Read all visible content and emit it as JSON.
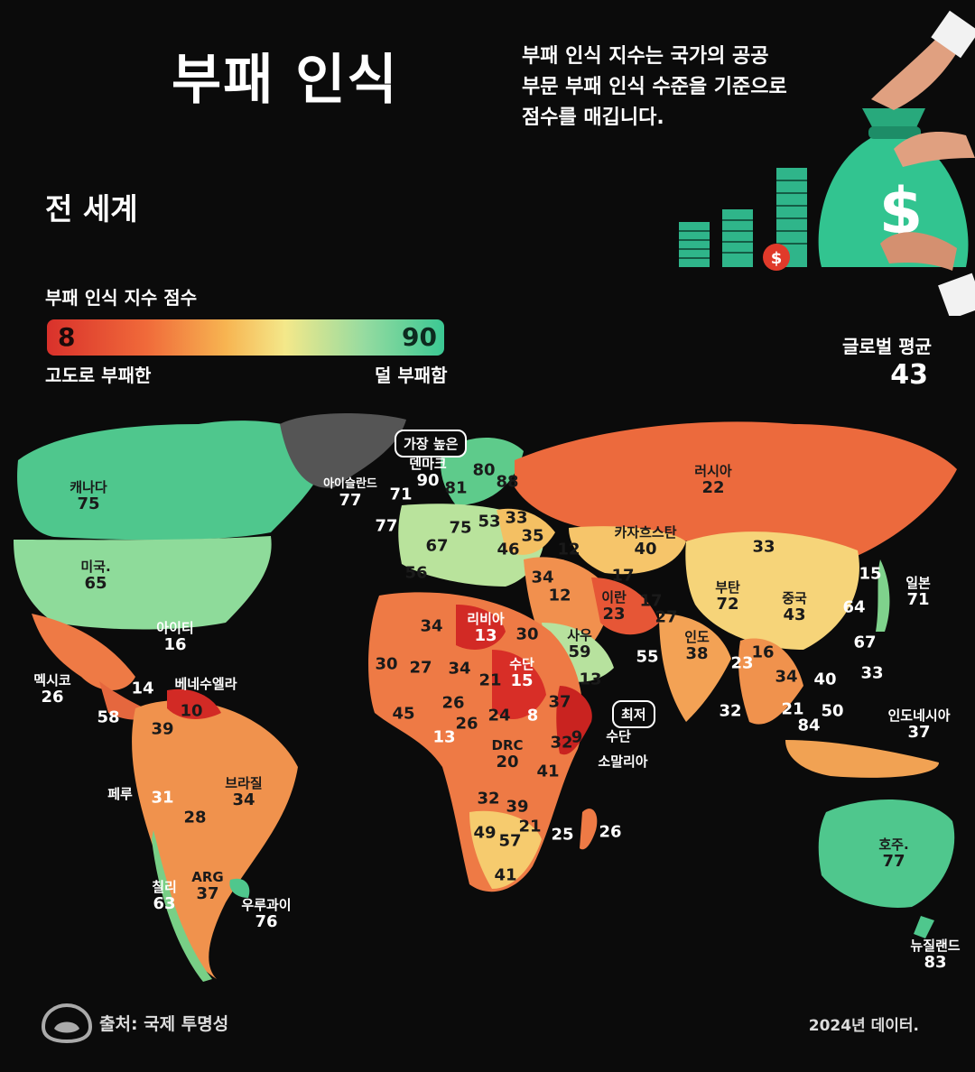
{
  "title": "부패 인식",
  "description": [
    "부패 인식 지수는 국가의 공공",
    "부문 부패 인식 수준을 기준으로",
    "점수를 매깁니다."
  ],
  "subtitle": "전 세계",
  "legend": {
    "title": "부패 인식 지수 점수",
    "min": "8",
    "max": "90",
    "low_label": "고도로 부패한",
    "high_label": "덜 부패함"
  },
  "global_average": {
    "label": "글로벌 평균",
    "value": "43"
  },
  "callouts": {
    "highest": "가장 높은",
    "lowest": "최저"
  },
  "labels": {
    "canada": {
      "name": "캐나다",
      "score": "75"
    },
    "usa": {
      "name": "미국.",
      "score": "65"
    },
    "mexico": {
      "name": "멕시코",
      "score": "26"
    },
    "haiti": {
      "name": "아이티",
      "score": "16"
    },
    "venezuela": {
      "name": "베네수엘라",
      "score": "10"
    },
    "peru": {
      "name": "페루",
      "score": "31"
    },
    "brazil": {
      "name": "브라질",
      "score": "34"
    },
    "chile": {
      "name": "칠리",
      "score": "63"
    },
    "argentina": {
      "name": "ARG",
      "score": "37"
    },
    "uruguay": {
      "name": "우루과이",
      "score": "76"
    },
    "iceland": {
      "name": "아이슬란드",
      "score": "77"
    },
    "denmark": {
      "name": "덴마크",
      "score": "90"
    },
    "russia": {
      "name": "러시아",
      "score": "22"
    },
    "kazakhstan": {
      "name": "카자흐스탄",
      "score": "40"
    },
    "libya": {
      "name": "리비아",
      "score": "13"
    },
    "sudan": {
      "name": "수단",
      "score": "15"
    },
    "south_sudan": {
      "name": "수단",
      "score": "8"
    },
    "somalia": {
      "name": "소말리아",
      "score": "9"
    },
    "drc": {
      "name": "DRC",
      "score": "20"
    },
    "saudi": {
      "name": "사우",
      "score": "59"
    },
    "iran": {
      "name": "이란",
      "score": "23"
    },
    "bhutan": {
      "name": "부탄",
      "score": "72"
    },
    "china": {
      "name": "중국",
      "score": "43"
    },
    "india": {
      "name": "인도",
      "score": "38"
    },
    "japan": {
      "name": "일본",
      "score": "71"
    },
    "indonesia": {
      "name": "인도네시아",
      "score": "37"
    },
    "australia": {
      "name": "호주.",
      "score": "77"
    },
    "new_zealand": {
      "name": "뉴질랜드",
      "score": "83"
    }
  },
  "scores": [
    {
      "v": "80",
      "c": "dark"
    },
    {
      "v": "88",
      "c": "dark"
    },
    {
      "v": "81",
      "c": "dark"
    },
    {
      "v": "71",
      "c": "light"
    },
    {
      "v": "77",
      "c": "light"
    },
    {
      "v": "75",
      "c": "dark"
    },
    {
      "v": "53",
      "c": "dark"
    },
    {
      "v": "33",
      "c": "dark"
    },
    {
      "v": "67",
      "c": "dark"
    },
    {
      "v": "46",
      "c": "dark"
    },
    {
      "v": "35",
      "c": "dark"
    },
    {
      "v": "12",
      "c": "dark"
    },
    {
      "v": "56",
      "c": "dark"
    },
    {
      "v": "34",
      "c": "dark"
    },
    {
      "v": "17",
      "c": "dark"
    },
    {
      "v": "12",
      "c": "dark"
    },
    {
      "v": "17",
      "c": "dark"
    },
    {
      "v": "27",
      "c": "dark"
    },
    {
      "v": "33",
      "c": "dark"
    },
    {
      "v": "15",
      "c": "light"
    },
    {
      "v": "64",
      "c": "light"
    },
    {
      "v": "67",
      "c": "light"
    },
    {
      "v": "33",
      "c": "light"
    },
    {
      "v": "40",
      "c": "light"
    },
    {
      "v": "16",
      "c": "dark"
    },
    {
      "v": "34",
      "c": "dark"
    },
    {
      "v": "23",
      "c": "light"
    },
    {
      "v": "21",
      "c": "light"
    },
    {
      "v": "50",
      "c": "light"
    },
    {
      "v": "84",
      "c": "light"
    },
    {
      "v": "32",
      "c": "light"
    },
    {
      "v": "55",
      "c": "light"
    },
    {
      "v": "13",
      "c": "dark"
    },
    {
      "v": "30",
      "c": "dark"
    },
    {
      "v": "34",
      "c": "dark"
    },
    {
      "v": "30",
      "c": "dark"
    },
    {
      "v": "27",
      "c": "dark"
    },
    {
      "v": "34",
      "c": "dark"
    },
    {
      "v": "21",
      "c": "dark"
    },
    {
      "v": "37",
      "c": "dark"
    },
    {
      "v": "45",
      "c": "dark"
    },
    {
      "v": "26",
      "c": "dark"
    },
    {
      "v": "26",
      "c": "dark"
    },
    {
      "v": "24",
      "c": "dark"
    },
    {
      "v": "13",
      "c": "light"
    },
    {
      "v": "32",
      "c": "dark"
    },
    {
      "v": "41",
      "c": "dark"
    },
    {
      "v": "32",
      "c": "dark"
    },
    {
      "v": "39",
      "c": "dark"
    },
    {
      "v": "49",
      "c": "dark"
    },
    {
      "v": "57",
      "c": "dark"
    },
    {
      "v": "21",
      "c": "dark"
    },
    {
      "v": "25",
      "c": "light"
    },
    {
      "v": "26",
      "c": "light"
    },
    {
      "v": "41",
      "c": "dark"
    },
    {
      "v": "14",
      "c": "light"
    },
    {
      "v": "58",
      "c": "light"
    },
    {
      "v": "39",
      "c": "dark"
    },
    {
      "v": "28",
      "c": "dark"
    },
    {
      "v": "31",
      "c": "light"
    }
  ],
  "source": "출처: 국제 투명성",
  "year_note": "2024년 데이터.",
  "colors": {
    "background": "#0b0b0b",
    "high": "#3bc893",
    "low": "#d9312b"
  },
  "icons": [
    "money-bag-icon",
    "coin-stack-icon",
    "dollar-coin-icon",
    "hand-icon",
    "source-logo-icon"
  ]
}
